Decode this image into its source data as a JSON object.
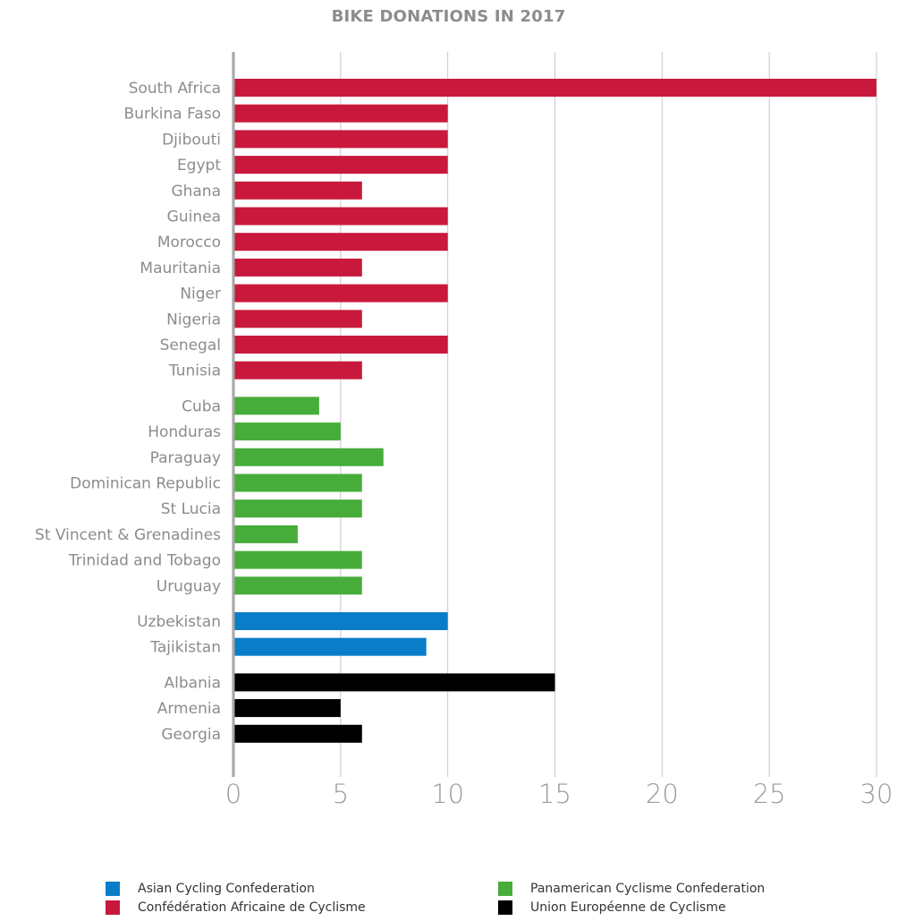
{
  "chart_data": {
    "type": "bar",
    "orientation": "horizontal",
    "title": "BIKE DONATIONS IN 2017",
    "xlim": [
      0,
      30
    ],
    "ticks": [
      "0",
      "5",
      "10",
      "15",
      "20",
      "25",
      "30"
    ],
    "grid": true,
    "legend_position": "bottom",
    "groups": [
      {
        "name": "Confédération Africaine de Cyclisme",
        "color": "#c8193c",
        "categories": [
          "South Africa",
          "Burkina Faso",
          "Djibouti",
          "Egypt",
          "Ghana",
          "Guinea",
          "Morocco",
          "Mauritania",
          "Niger",
          "Nigeria",
          "Senegal",
          "Tunisia"
        ],
        "values": [
          30,
          10,
          10,
          10,
          6,
          10,
          10,
          6,
          10,
          6,
          10,
          6
        ]
      },
      {
        "name": "Panamerican Cyclisme Confederation",
        "color": "#47ad3a",
        "categories": [
          "Cuba",
          "Honduras",
          "Paraguay",
          "Dominican Republic",
          "St Lucia",
          "St Vincent & Grenadines",
          "Trinidad and Tobago",
          "Uruguay"
        ],
        "values": [
          4,
          5,
          7,
          6,
          6,
          3,
          6,
          6
        ]
      },
      {
        "name": "Asian Cycling Confederation",
        "color": "#0a7dc8",
        "categories": [
          "Uzbekistan",
          "Tajikistan"
        ],
        "values": [
          10,
          9
        ]
      },
      {
        "name": "Union Européenne de Cyclisme",
        "color": "#000000",
        "categories": [
          "Albania",
          "Armenia",
          "Georgia"
        ],
        "values": [
          15,
          5,
          6
        ]
      }
    ]
  },
  "legend": {
    "items": [
      {
        "label": "Asian Cycling Confederation",
        "color": "#0a7dc8"
      },
      {
        "label": "Panamerican Cyclisme Confederation",
        "color": "#47ad3a"
      },
      {
        "label": "Confédération Africaine de Cyclisme",
        "color": "#c8193c"
      },
      {
        "label": "Union Européenne de Cyclisme",
        "color": "#000000"
      }
    ]
  }
}
